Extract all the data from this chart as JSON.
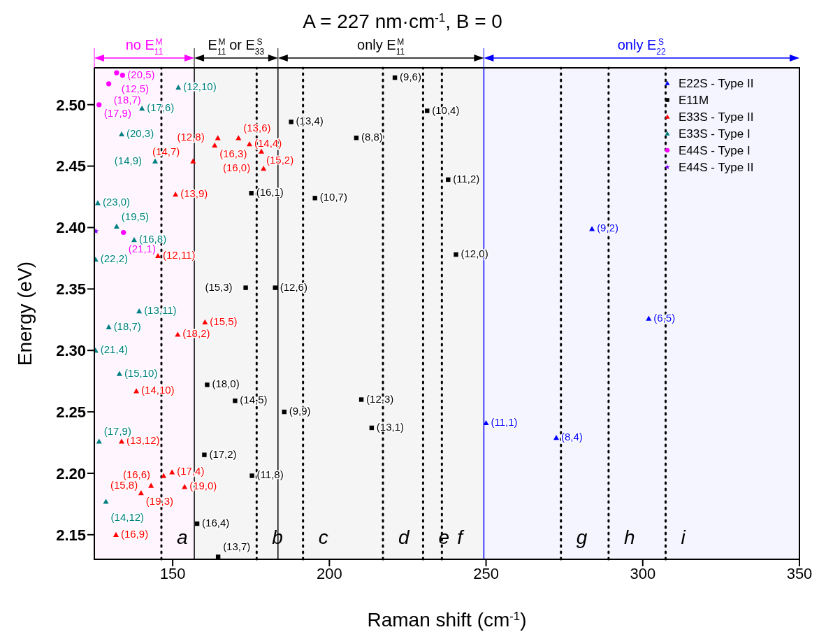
{
  "chart_data": {
    "type": "scatter",
    "title": "A = 227 nm·cm$^{-1}$, B = 0",
    "xlabel": "Raman shift (cm$^{-1}$)",
    "ylabel": "Energy (eV)",
    "xlim": [
      125,
      350
    ],
    "xticks": [
      150,
      200,
      250,
      300,
      350
    ],
    "ylim": [
      2.13,
      2.53
    ],
    "yticks": [
      2.15,
      {
        "value": 2.2,
        "label": "2.20"
      },
      2.25,
      {
        "value": 2.3,
        "label": "2.30"
      },
      2.35,
      {
        "value": 2.4,
        "label": "2.40"
      },
      2.45,
      {
        "value": 2.5,
        "label": "2.50"
      }
    ],
    "legend": "top right",
    "series": [
      {
        "name": "E22S - Type II",
        "color": "#0000ff",
        "marker": "triangle",
        "x": [
          283.8,
          301.9,
          250.0,
          272.4
        ],
        "values": [
          2.399,
          2.326,
          2.241,
          2.229
        ]
      },
      {
        "name": "E11M",
        "color": "#000000",
        "marker": "square",
        "x": [
          220.9,
          231.2,
          187.8,
          208.6,
          237.9,
          175.1,
          195.4,
          240.4,
          173.3,
          182.7,
          161.0,
          169.9,
          210.2,
          185.6,
          213.5,
          160.1,
          175.3,
          157.8,
          164.5
        ],
        "values": [
          2.522,
          2.495,
          2.486,
          2.473,
          2.439,
          2.428,
          2.424,
          2.378,
          2.351,
          2.351,
          2.272,
          2.259,
          2.26,
          2.25,
          2.237,
          2.215,
          2.198,
          2.159,
          2.132
        ]
      },
      {
        "name": "E33S - Type II",
        "color": "#ff0000",
        "marker": "triangle",
        "x": [
          164.4,
          171.0,
          163.4,
          174.5,
          178.3,
          179.0,
          156.5,
          150.9,
          145.3,
          160.3,
          151.6,
          138.4,
          133.7,
          149.8,
          147.1,
          143.1,
          153.8,
          139.9,
          131.9
        ],
        "values": [
          2.473,
          2.473,
          2.467,
          2.468,
          2.462,
          2.448,
          2.454,
          2.427,
          2.377,
          2.323,
          2.313,
          2.267,
          2.226,
          2.201,
          2.198,
          2.19,
          2.189,
          2.184,
          2.15
        ]
      },
      {
        "name": "E33S - Type I",
        "color": "#008080",
        "marker": "triangle",
        "x": [
          151.8,
          140.2,
          133.7,
          144.4,
          126.1,
          132.1,
          137.7,
          125.4,
          139.3,
          129.6,
          125.4,
          133.0,
          126.5,
          128.7
        ],
        "values": [
          2.514,
          2.497,
          2.476,
          2.454,
          2.42,
          2.401,
          2.39,
          2.374,
          2.332,
          2.319,
          2.3,
          2.281,
          2.226,
          2.177
        ]
      },
      {
        "name": "E44S - Type I",
        "color": "#ff00ff",
        "marker": "circle",
        "x": [
          132.1,
          134.0,
          129.6,
          126.5,
          134.3
        ],
        "values": [
          2.526,
          2.524,
          2.517,
          2.5,
          2.396
        ]
      },
      {
        "name": "E44S - Type II",
        "color": "#8000ff",
        "marker": "star",
        "x": [
          125.5
        ],
        "values": [
          2.397
        ]
      }
    ],
    "annotations": [
      {
        "text": "(9,2)",
        "x": 283.8,
        "y": 2.399
      },
      {
        "text": "(6,5)",
        "x": 301.9,
        "y": 2.326
      },
      {
        "text": "(11,1)",
        "x": 250.0,
        "y": 2.241
      },
      {
        "text": "(8,4)",
        "x": 272.4,
        "y": 2.229
      },
      {
        "text": "(9,6)",
        "x": 220.9,
        "y": 2.522
      },
      {
        "text": "(10,4)",
        "x": 231.2,
        "y": 2.495
      },
      {
        "text": "(13,4)",
        "x": 187.8,
        "y": 2.486
      },
      {
        "text": "(8,8)",
        "x": 208.6,
        "y": 2.473
      },
      {
        "text": "(11,2)",
        "x": 237.9,
        "y": 2.439
      },
      {
        "text": "(16,1)",
        "x": 175.1,
        "y": 2.428
      },
      {
        "text": "(10,7)",
        "x": 195.4,
        "y": 2.424
      },
      {
        "text": "(12,0)",
        "x": 240.4,
        "y": 2.378
      },
      {
        "text": "(15,3)",
        "x": 173.3,
        "y": 2.351
      },
      {
        "text": "(12,6)",
        "x": 182.7,
        "y": 2.351
      },
      {
        "text": "(18,0)",
        "x": 161.0,
        "y": 2.272
      },
      {
        "text": "(14,5)",
        "x": 169.9,
        "y": 2.259
      },
      {
        "text": "(12,3)",
        "x": 210.2,
        "y": 2.26
      },
      {
        "text": "(9,9)",
        "x": 185.6,
        "y": 2.25
      },
      {
        "text": "(13,1)",
        "x": 213.5,
        "y": 2.237
      },
      {
        "text": "(17,2)",
        "x": 160.1,
        "y": 2.215
      },
      {
        "text": "(11,8)",
        "x": 175.3,
        "y": 2.198
      },
      {
        "text": "(16,4)",
        "x": 157.8,
        "y": 2.159
      },
      {
        "text": "(13,7)",
        "x": 164.5,
        "y": 2.132
      },
      {
        "text": "(12,8)",
        "x": 164.4,
        "y": 2.473
      },
      {
        "text": "(13,6)",
        "x": 171.0,
        "y": 2.473
      },
      {
        "text": "(16,3)",
        "x": 163.4,
        "y": 2.467
      },
      {
        "text": "(14,4)",
        "x": 174.5,
        "y": 2.468
      },
      {
        "text": "(15,2)",
        "x": 178.3,
        "y": 2.462
      },
      {
        "text": "(16,0)",
        "x": 179.0,
        "y": 2.448
      },
      {
        "text": "(14,7)",
        "x": 156.5,
        "y": 2.454
      },
      {
        "text": "(13,9)",
        "x": 150.9,
        "y": 2.427
      },
      {
        "text": "(12,11)",
        "x": 145.3,
        "y": 2.377
      },
      {
        "text": "(15,5)",
        "x": 160.3,
        "y": 2.323
      },
      {
        "text": "(18,2)",
        "x": 151.6,
        "y": 2.313
      },
      {
        "text": "(14,10)",
        "x": 138.4,
        "y": 2.267
      },
      {
        "text": "(13,12)",
        "x": 133.7,
        "y": 2.226
      },
      {
        "text": "(17,4)",
        "x": 149.8,
        "y": 2.201
      },
      {
        "text": "(16,6)",
        "x": 147.1,
        "y": 2.198
      },
      {
        "text": "(15,8)",
        "x": 143.1,
        "y": 2.19
      },
      {
        "text": "(19,0)",
        "x": 153.8,
        "y": 2.189
      },
      {
        "text": "(19,3)",
        "x": 139.9,
        "y": 2.184
      },
      {
        "text": "(16,9)",
        "x": 131.9,
        "y": 2.15
      },
      {
        "text": "(12,10)",
        "x": 151.8,
        "y": 2.514
      },
      {
        "text": "(17,6)",
        "x": 140.2,
        "y": 2.497
      },
      {
        "text": "(20,3)",
        "x": 133.7,
        "y": 2.476
      },
      {
        "text": "(14,9)",
        "x": 144.4,
        "y": 2.454
      },
      {
        "text": "(23,0)",
        "x": 126.1,
        "y": 2.42
      },
      {
        "text": "(19,5)",
        "x": 132.1,
        "y": 2.401
      },
      {
        "text": "(16,8)",
        "x": 137.7,
        "y": 2.39
      },
      {
        "text": "(22,2)",
        "x": 125.4,
        "y": 2.374
      },
      {
        "text": "(13,11)",
        "x": 139.3,
        "y": 2.332
      },
      {
        "text": "(18,7)",
        "x": 129.6,
        "y": 2.319
      },
      {
        "text": "(21,4)",
        "x": 125.4,
        "y": 2.3
      },
      {
        "text": "(15,10)",
        "x": 133.0,
        "y": 2.281
      },
      {
        "text": "(17,9)",
        "x": 126.5,
        "y": 2.226
      },
      {
        "text": "(14,12)",
        "x": 128.7,
        "y": 2.177
      },
      {
        "text": "(12,5)",
        "x": 132.1,
        "y": 2.526
      },
      {
        "text": "(20,5)",
        "x": 134.0,
        "y": 2.524
      },
      {
        "text": "(18,7)",
        "x": 129.6,
        "y": 2.517
      },
      {
        "text": "(17,9)",
        "x": 126.5,
        "y": 2.5
      },
      {
        "text": "(21,1)",
        "x": 134.3,
        "y": 2.396
      }
    ],
    "ref_lines": [
      {
        "axis": "x",
        "value": 146.4,
        "label": "a",
        "line_style": "dotted",
        "color": "#000000"
      },
      {
        "axis": "x",
        "value": 176.8,
        "label": "b",
        "line_style": "dotted",
        "color": "#000000"
      },
      {
        "axis": "x",
        "value": 191.6,
        "label": "c",
        "line_style": "dotted",
        "color": "#000000"
      },
      {
        "axis": "x",
        "value": 217.1,
        "label": "d",
        "line_style": "dotted",
        "color": "#000000"
      },
      {
        "axis": "x",
        "value": 229.9,
        "label": "e",
        "line_style": "dotted",
        "color": "#000000"
      },
      {
        "axis": "x",
        "value": 235.9,
        "label": "f",
        "line_style": "dotted",
        "color": "#000000"
      },
      {
        "axis": "x",
        "value": 273.9,
        "label": "g",
        "line_style": "dotted",
        "color": "#000000"
      },
      {
        "axis": "x",
        "value": 289.1,
        "label": "h",
        "line_style": "dotted",
        "color": "#000000"
      },
      {
        "axis": "x",
        "value": 307.3,
        "label": "i",
        "line_style": "dotted",
        "color": "#000000"
      },
      {
        "axis": "x",
        "value": 156.9,
        "line_style": "solid",
        "color": "#000000"
      },
      {
        "axis": "x",
        "value": 183.6,
        "line_style": "solid",
        "color": "#000000"
      },
      {
        "axis": "x",
        "value": 249.3,
        "line_style": "solid",
        "color": "#0000ff"
      }
    ],
    "bands": [
      {
        "axis": "x",
        "from": 125,
        "to": 156.9,
        "label": "no E$_{11}$$^{M}$",
        "color": "#ff00ff"
      },
      {
        "axis": "x",
        "from": 156.9,
        "to": 183.6,
        "label": "E$_{11}$$^{M}$ or E$_{33}$$^{S}$",
        "color": "#000000"
      },
      {
        "axis": "x",
        "from": 183.6,
        "to": 249.3,
        "label": "only E$_{11}$$^{M}$",
        "color": "#000000"
      },
      {
        "axis": "x",
        "from": 249.3,
        "to": 350,
        "label": "only E$_{22}$$^{S}$",
        "color": "#0000ff"
      }
    ]
  }
}
